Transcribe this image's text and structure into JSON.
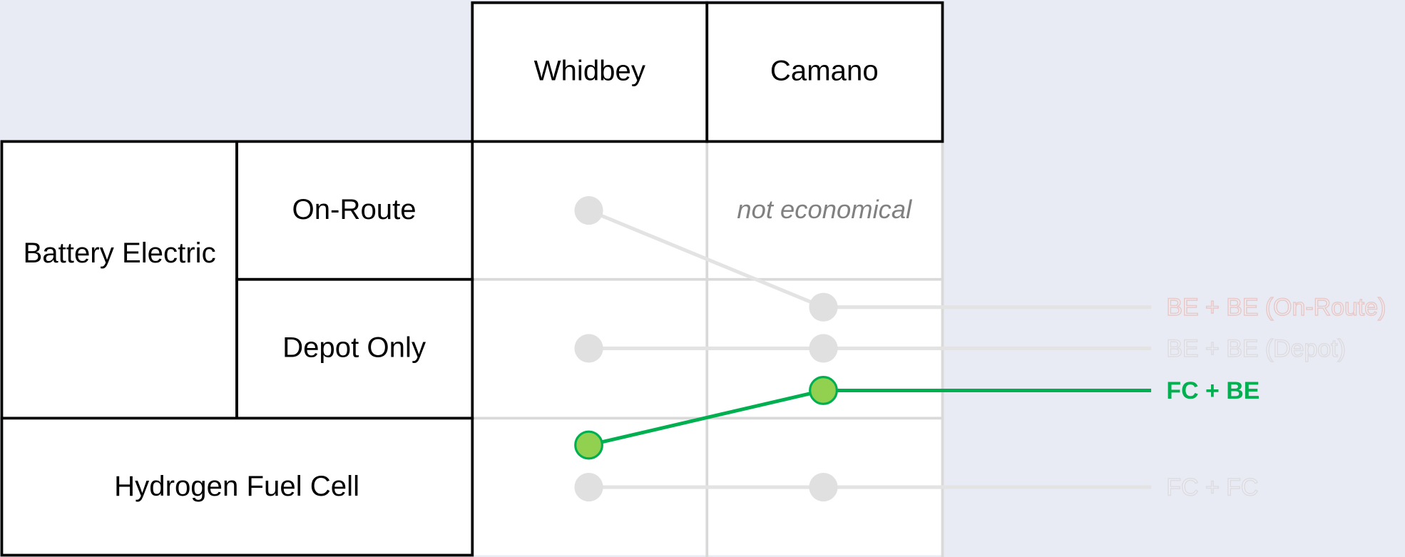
{
  "columns": [
    "Whidbey",
    "Camano"
  ],
  "rows": {
    "battery": {
      "label": "Battery Electric",
      "subrows": [
        "On-Route",
        "Depot Only"
      ]
    },
    "hydrogen": {
      "label": "Hydrogen Fuel Cell"
    }
  },
  "note": "not economical",
  "scenarios": [
    "BE + BE (On-Route)",
    "BE + BE (Depot)",
    "FC + BE",
    "FC + FC"
  ]
}
